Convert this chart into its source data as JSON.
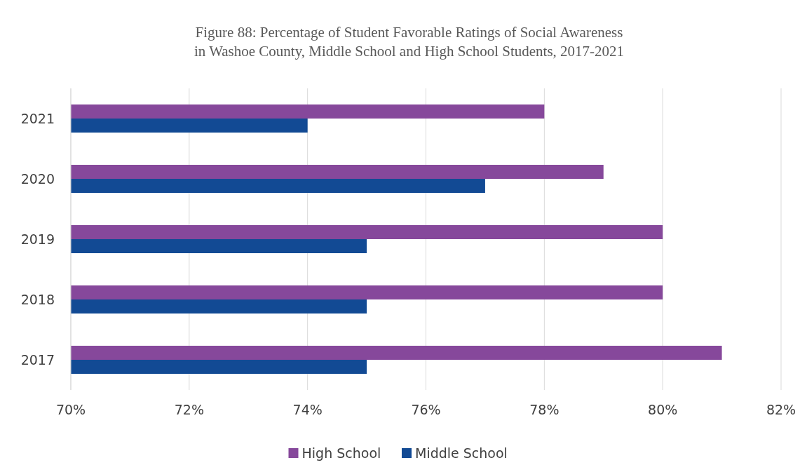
{
  "chart_data": {
    "type": "bar",
    "orientation": "horizontal",
    "title": "Figure 88: Percentage of Student Favorable Ratings of Social Awareness in Washoe County, Middle School and High School Students, 2017-2021",
    "categories": [
      "2021",
      "2020",
      "2019",
      "2018",
      "2017"
    ],
    "series": [
      {
        "name": "High School",
        "color": "#86489b",
        "values": [
          78,
          79,
          80,
          80,
          81
        ]
      },
      {
        "name": "Middle School",
        "color": "#124a94",
        "values": [
          74,
          77,
          75,
          75,
          75
        ]
      }
    ],
    "xlim": [
      70,
      82
    ],
    "xticks": [
      {
        "value": 70,
        "label": "70%"
      },
      {
        "value": 72,
        "label": "72%"
      },
      {
        "value": 74,
        "label": "74%"
      },
      {
        "value": 76,
        "label": "76%"
      },
      {
        "value": 78,
        "label": "78%"
      },
      {
        "value": 80,
        "label": "80%"
      },
      {
        "value": 82,
        "label": "82%"
      }
    ],
    "grid": "x",
    "legend": "bottom"
  }
}
